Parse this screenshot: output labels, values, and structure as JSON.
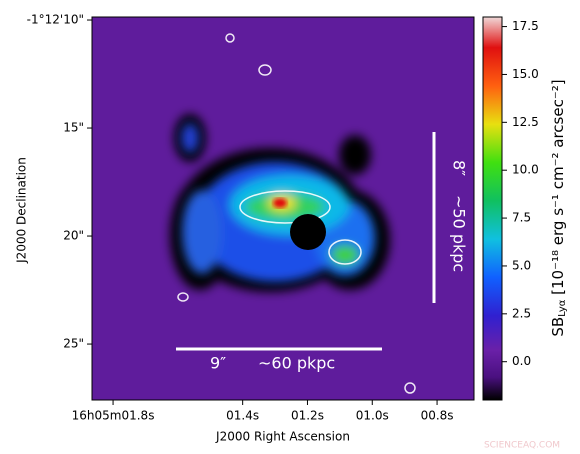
{
  "chart_data": {
    "type": "image",
    "xlabel": "J2000 Right Ascension",
    "ylabel": "J2000 Declination",
    "xlim": [
      1.865,
      0.686
    ],
    "xticks": [
      {
        "value": 1.8,
        "label": "16h05m01.8s"
      },
      {
        "value": 1.4,
        "label": "01.4s"
      },
      {
        "value": 1.2,
        "label": "01.2s"
      },
      {
        "value": 1.0,
        "label": "01.0s"
      },
      {
        "value": 0.8,
        "label": "00.8s"
      }
    ],
    "ylim": [
      9.86,
      27.59
    ],
    "yticks": [
      {
        "value": 10,
        "label": "-1°12'10\""
      },
      {
        "value": 15,
        "label": "15\""
      },
      {
        "value": 20,
        "label": "20\""
      },
      {
        "value": 25,
        "label": "25\""
      }
    ],
    "colorbar_label": {
      "main": "SB",
      "sub": "Lyα",
      "rest": " [10⁻¹⁸ erg s⁻¹ cm⁻² arcsec⁻²]"
    },
    "clim": [
      -2,
      18
    ],
    "cticks": [
      {
        "value": 0,
        "label": "0.0"
      },
      {
        "value": 2.5,
        "label": "2.5"
      },
      {
        "value": 5,
        "label": "5.0"
      },
      {
        "value": 7.5,
        "label": "7.5"
      },
      {
        "value": 10,
        "label": "10.0"
      },
      {
        "value": 12.5,
        "label": "12.5"
      },
      {
        "value": 15,
        "label": "15.0"
      },
      {
        "value": 17.5,
        "label": "17.5"
      }
    ],
    "annotations": {
      "bar1_size": "9″",
      "bar1_dist": "~60 pkpc",
      "bar2_size": "8″",
      "bar2_dist": "~50 pkpc"
    },
    "watermark": "SCIENCEAQ.COM"
  }
}
